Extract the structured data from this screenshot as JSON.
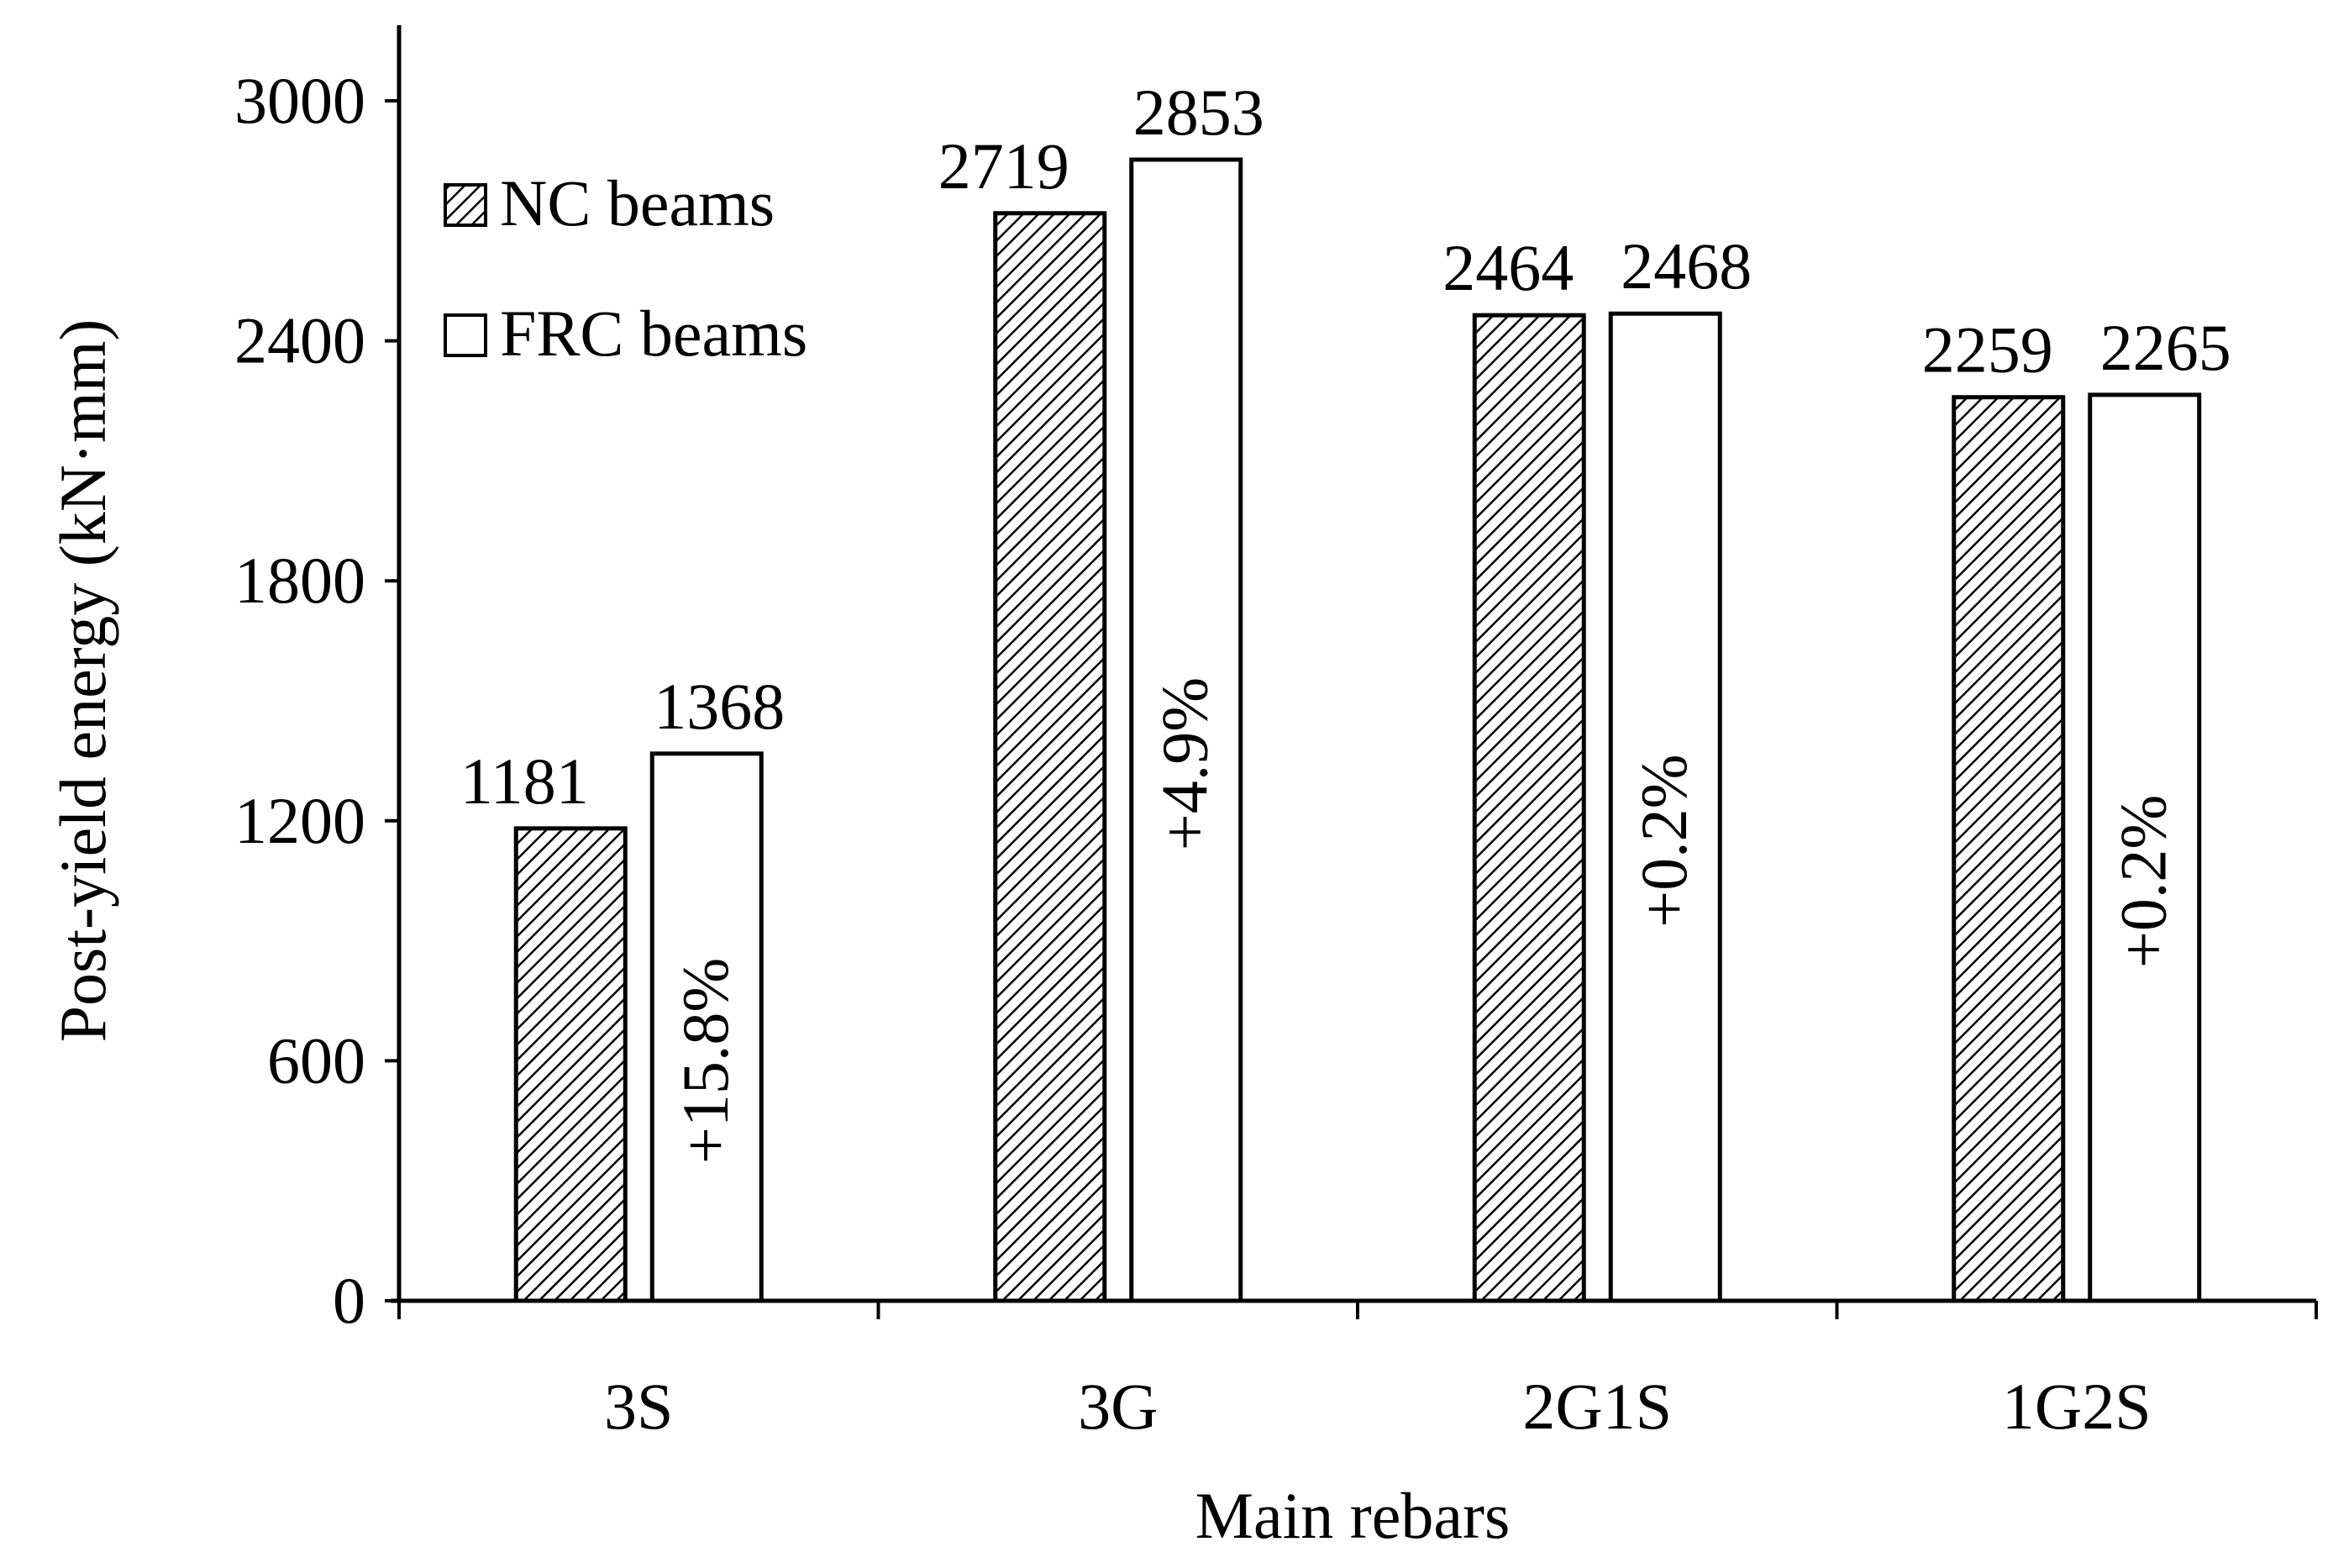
{
  "chart_data": {
    "type": "bar",
    "xlabel": "Main rebars",
    "ylabel": "Post-yield energy (kN·mm)",
    "ylim": [
      0,
      3200
    ],
    "yticks": [
      0,
      600,
      1200,
      1800,
      2400,
      3000
    ],
    "categories": [
      "3S",
      "3G",
      "2G1S",
      "1G2S"
    ],
    "series": [
      {
        "name": "NC beams",
        "values": [
          1181,
          2719,
          2464,
          2259
        ],
        "pattern": "hatched"
      },
      {
        "name": "FRC beams",
        "values": [
          1368,
          2853,
          2468,
          2265
        ],
        "pattern": "white"
      }
    ],
    "annotations": [
      "+15.8%",
      "+4.9%",
      "+0.2%",
      "+0.2%"
    ],
    "legend_position": "top-left",
    "grid": false,
    "colors": {
      "bar_stroke": "#000000",
      "hatch": "#000000",
      "background": "#ffffff"
    }
  }
}
